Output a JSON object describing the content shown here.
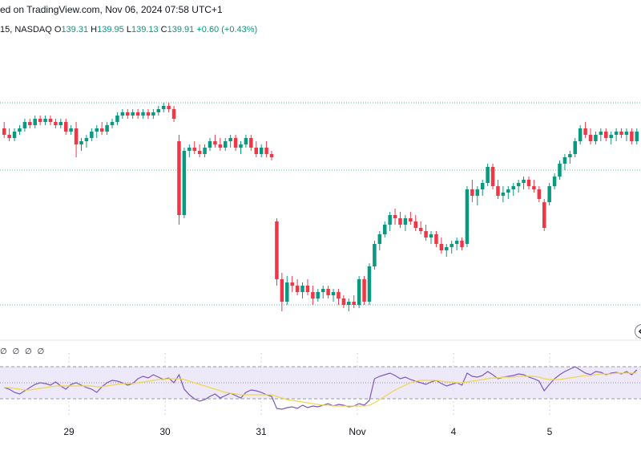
{
  "header": {
    "publish_text": "ed on TradingView.com, Nov 06, 2024 07:58 UTC+1"
  },
  "ohlc": {
    "prefix": "15, NASDAQ",
    "open_label": "O",
    "open": "139.31",
    "high_label": "H",
    "high": "139.95",
    "low_label": "L",
    "low": "139.13",
    "close_label": "C",
    "close": "139.91",
    "change": "+0.60 (+0.43%)"
  },
  "rsi": {
    "legend": "∅ ∅ ∅ ∅"
  },
  "colors": {
    "up": "#089981",
    "down": "#f23645",
    "rsi_line": "#7e57c2",
    "rsi_ma": "#f0d64f",
    "rsi_band": "#e8e3f8",
    "grid_dotted": "#089981"
  },
  "chart_data": [
    {
      "type": "candlestick",
      "x_ticks": [
        "29",
        "30",
        "31",
        "Nov",
        "4",
        "5"
      ],
      "price_range": [
        133.2,
        141.2
      ],
      "reference_lines": [
        140.0,
        137.9,
        133.7
      ],
      "candles": [
        [
          139.2,
          139.4,
          138.9,
          139.0
        ],
        [
          139.0,
          139.2,
          138.8,
          138.9
        ],
        [
          138.9,
          139.2,
          138.8,
          139.1
        ],
        [
          139.1,
          139.3,
          139.0,
          139.2
        ],
        [
          139.2,
          139.5,
          139.1,
          139.4
        ],
        [
          139.4,
          139.5,
          139.2,
          139.3
        ],
        [
          139.3,
          139.6,
          139.2,
          139.5
        ],
        [
          139.5,
          139.6,
          139.3,
          139.4
        ],
        [
          139.4,
          139.6,
          139.3,
          139.5
        ],
        [
          139.5,
          139.6,
          139.3,
          139.4
        ],
        [
          139.4,
          139.5,
          139.2,
          139.3
        ],
        [
          139.3,
          139.5,
          139.2,
          139.4
        ],
        [
          139.4,
          139.5,
          139.0,
          139.1
        ],
        [
          139.1,
          139.3,
          139.0,
          139.2
        ],
        [
          139.2,
          139.4,
          138.3,
          138.7
        ],
        [
          138.7,
          138.9,
          138.5,
          138.8
        ],
        [
          138.8,
          139.0,
          138.6,
          138.9
        ],
        [
          138.9,
          139.2,
          138.8,
          139.1
        ],
        [
          139.1,
          139.3,
          138.9,
          139.2
        ],
        [
          139.2,
          139.4,
          139.0,
          139.1
        ],
        [
          139.1,
          139.4,
          139.0,
          139.3
        ],
        [
          139.3,
          139.5,
          139.2,
          139.4
        ],
        [
          139.4,
          139.7,
          139.3,
          139.6
        ],
        [
          139.6,
          139.8,
          139.5,
          139.7
        ],
        [
          139.7,
          139.8,
          139.5,
          139.6
        ],
        [
          139.6,
          139.8,
          139.5,
          139.7
        ],
        [
          139.7,
          139.8,
          139.5,
          139.6
        ],
        [
          139.6,
          139.8,
          139.5,
          139.7
        ],
        [
          139.7,
          139.8,
          139.5,
          139.6
        ],
        [
          139.6,
          139.8,
          139.5,
          139.7
        ],
        [
          139.7,
          139.9,
          139.6,
          139.8
        ],
        [
          139.8,
          140.0,
          139.7,
          139.9
        ],
        [
          139.9,
          140.0,
          139.7,
          139.8
        ],
        [
          139.8,
          139.9,
          139.4,
          139.5
        ],
        [
          138.8,
          139.0,
          136.2,
          136.5
        ],
        [
          136.5,
          138.6,
          136.4,
          138.5
        ],
        [
          138.5,
          138.7,
          138.3,
          138.6
        ],
        [
          138.6,
          138.8,
          138.4,
          138.5
        ],
        [
          138.5,
          138.7,
          138.3,
          138.4
        ],
        [
          138.4,
          138.7,
          138.3,
          138.6
        ],
        [
          138.6,
          138.9,
          138.5,
          138.8
        ],
        [
          138.8,
          139.0,
          138.6,
          138.7
        ],
        [
          138.7,
          138.9,
          138.5,
          138.6
        ],
        [
          138.6,
          138.9,
          138.5,
          138.8
        ],
        [
          138.8,
          139.0,
          138.6,
          138.9
        ],
        [
          138.9,
          139.0,
          138.5,
          138.6
        ],
        [
          138.6,
          138.8,
          138.4,
          138.7
        ],
        [
          138.7,
          139.0,
          138.6,
          138.9
        ],
        [
          138.9,
          139.0,
          138.5,
          138.6
        ],
        [
          138.6,
          138.8,
          138.3,
          138.4
        ],
        [
          138.4,
          138.7,
          138.3,
          138.6
        ],
        [
          138.6,
          138.8,
          138.3,
          138.4
        ],
        [
          138.4,
          138.5,
          138.2,
          138.3
        ],
        [
          136.3,
          136.4,
          134.3,
          134.5
        ],
        [
          134.5,
          134.7,
          133.5,
          133.8
        ],
        [
          133.8,
          134.6,
          133.7,
          134.4
        ],
        [
          134.4,
          134.6,
          134.1,
          134.3
        ],
        [
          134.3,
          134.5,
          134.0,
          134.1
        ],
        [
          134.1,
          134.4,
          133.9,
          134.3
        ],
        [
          134.3,
          134.5,
          134.0,
          134.1
        ],
        [
          134.1,
          134.3,
          133.7,
          133.9
        ],
        [
          133.9,
          134.2,
          133.8,
          134.1
        ],
        [
          134.1,
          134.3,
          133.9,
          134.2
        ],
        [
          134.2,
          134.3,
          133.9,
          134.0
        ],
        [
          134.0,
          134.2,
          133.8,
          134.1
        ],
        [
          134.1,
          134.2,
          133.7,
          133.9
        ],
        [
          133.9,
          134.0,
          133.6,
          133.7
        ],
        [
          133.7,
          133.9,
          133.5,
          133.8
        ],
        [
          133.8,
          134.0,
          133.6,
          133.7
        ],
        [
          133.7,
          134.6,
          133.6,
          134.5
        ],
        [
          134.5,
          134.6,
          133.7,
          133.8
        ],
        [
          133.8,
          135.0,
          133.7,
          134.9
        ],
        [
          134.9,
          135.7,
          134.8,
          135.6
        ],
        [
          135.6,
          136.0,
          135.4,
          135.9
        ],
        [
          135.9,
          136.3,
          135.8,
          136.2
        ],
        [
          136.2,
          136.6,
          136.0,
          136.5
        ],
        [
          136.5,
          136.7,
          136.2,
          136.4
        ],
        [
          136.4,
          136.6,
          136.1,
          136.2
        ],
        [
          136.2,
          136.5,
          136.0,
          136.4
        ],
        [
          136.4,
          136.6,
          136.2,
          136.3
        ],
        [
          136.3,
          136.5,
          136.0,
          136.1
        ],
        [
          136.1,
          136.3,
          135.9,
          136.0
        ],
        [
          136.0,
          136.2,
          135.7,
          135.8
        ],
        [
          135.8,
          136.0,
          135.6,
          135.9
        ],
        [
          135.9,
          136.0,
          135.5,
          135.6
        ],
        [
          135.6,
          135.8,
          135.3,
          135.4
        ],
        [
          135.4,
          135.6,
          135.2,
          135.5
        ],
        [
          135.5,
          135.7,
          135.3,
          135.6
        ],
        [
          135.6,
          135.8,
          135.4,
          135.7
        ],
        [
          135.7,
          135.8,
          135.4,
          135.5
        ],
        [
          135.6,
          137.4,
          135.5,
          137.3
        ],
        [
          137.3,
          137.6,
          136.9,
          137.1
        ],
        [
          137.1,
          137.4,
          136.8,
          137.3
        ],
        [
          137.3,
          137.6,
          137.1,
          137.5
        ],
        [
          137.5,
          138.1,
          137.4,
          138.0
        ],
        [
          138.0,
          138.1,
          137.3,
          137.4
        ],
        [
          137.4,
          137.6,
          137.0,
          137.1
        ],
        [
          137.1,
          137.4,
          136.9,
          137.2
        ],
        [
          137.2,
          137.4,
          137.0,
          137.3
        ],
        [
          137.3,
          137.5,
          137.1,
          137.4
        ],
        [
          137.4,
          137.6,
          137.2,
          137.5
        ],
        [
          137.5,
          137.7,
          137.3,
          137.6
        ],
        [
          137.6,
          137.7,
          137.3,
          137.4
        ],
        [
          137.4,
          137.6,
          137.2,
          137.3
        ],
        [
          137.3,
          137.4,
          136.9,
          137.0
        ],
        [
          136.9,
          137.0,
          136.0,
          136.1
        ],
        [
          136.9,
          137.5,
          136.8,
          137.4
        ],
        [
          137.4,
          137.8,
          137.3,
          137.7
        ],
        [
          137.7,
          138.2,
          137.6,
          138.1
        ],
        [
          138.1,
          138.4,
          137.9,
          138.3
        ],
        [
          138.3,
          138.5,
          138.1,
          138.4
        ],
        [
          138.4,
          138.9,
          138.3,
          138.8
        ],
        [
          138.8,
          139.3,
          138.7,
          139.2
        ],
        [
          139.2,
          139.4,
          138.9,
          139.0
        ],
        [
          139.0,
          139.2,
          138.7,
          138.8
        ],
        [
          138.8,
          139.1,
          138.7,
          139.0
        ],
        [
          139.0,
          139.2,
          138.8,
          139.1
        ],
        [
          139.1,
          139.2,
          138.8,
          138.9
        ],
        [
          138.9,
          139.1,
          138.7,
          139.0
        ],
        [
          139.0,
          139.2,
          138.8,
          139.1
        ],
        [
          139.1,
          139.2,
          138.9,
          139.0
        ],
        [
          139.0,
          139.2,
          138.8,
          139.1
        ],
        [
          139.1,
          139.2,
          138.7,
          138.8
        ],
        [
          138.8,
          139.2,
          138.7,
          139.1
        ]
      ]
    },
    {
      "type": "line",
      "name": "RSI",
      "y_range": [
        15,
        90
      ],
      "bands": [
        70,
        50,
        30
      ],
      "values": [
        44,
        42,
        38,
        36,
        40,
        44,
        48,
        50,
        49,
        47,
        51,
        46,
        42,
        48,
        50,
        47,
        44,
        42,
        38,
        45,
        50,
        53,
        52,
        50,
        47,
        49,
        55,
        58,
        56,
        60,
        57,
        54,
        56,
        50,
        60,
        42,
        35,
        30,
        27,
        29,
        33,
        36,
        31,
        34,
        37,
        34,
        31,
        38,
        41,
        40,
        38,
        35,
        33,
        18,
        17,
        19,
        20,
        18,
        22,
        19,
        21,
        20,
        22,
        24,
        21,
        23,
        22,
        20,
        21,
        24,
        22,
        28,
        55,
        58,
        60,
        62,
        59,
        55,
        57,
        54,
        52,
        50,
        48,
        51,
        53,
        49,
        46,
        48,
        50,
        47,
        62,
        58,
        57,
        59,
        64,
        60,
        55,
        57,
        58,
        59,
        61,
        60,
        57,
        55,
        52,
        40,
        48,
        55,
        60,
        64,
        67,
        70,
        66,
        62,
        60,
        64,
        63,
        60,
        62,
        63,
        61,
        64,
        60,
        66
      ],
      "ma_values": [
        44,
        44,
        43,
        42,
        41,
        41,
        42,
        43,
        44,
        45,
        46,
        46,
        46,
        46,
        46,
        46,
        46,
        46,
        45,
        45,
        46,
        47,
        48,
        49,
        49,
        49,
        50,
        51,
        52,
        53,
        54,
        54,
        55,
        55,
        55,
        54,
        52,
        50,
        48,
        46,
        44,
        42,
        40,
        38,
        37,
        36,
        35,
        35,
        35,
        35,
        35,
        35,
        35,
        33,
        31,
        29,
        28,
        27,
        26,
        25,
        24,
        23,
        22,
        22,
        21,
        21,
        21,
        21,
        21,
        21,
        21,
        22,
        25,
        29,
        33,
        37,
        41,
        44,
        47,
        50,
        52,
        53,
        53,
        53,
        53,
        52,
        51,
        51,
        50,
        50,
        51,
        52,
        53,
        54,
        55,
        56,
        56,
        57,
        57,
        57,
        58,
        58,
        58,
        58,
        57,
        55,
        54,
        54,
        54,
        55,
        56,
        57,
        58,
        59,
        59,
        60,
        61,
        61,
        61,
        62,
        62,
        62,
        62,
        62
      ]
    }
  ]
}
